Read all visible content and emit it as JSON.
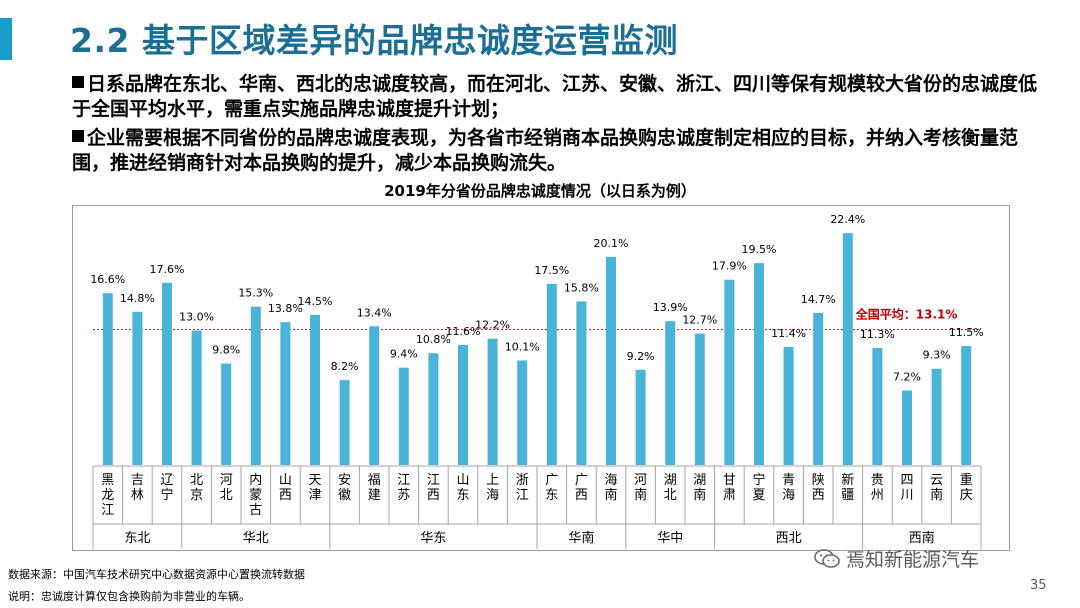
{
  "slide": {
    "title": "2.2 基于区域差异的品牌忠诚度运营监测",
    "bullet1": "日系品牌在东北、华南、西北的忠诚度较高，而在河北、江苏、安徽、浙江、四川等保有规模较大省份的忠诚度低于全国平均水平，需重点实施品牌忠诚度提升计划；",
    "bullet2": "企业需要根据不同省份的品牌忠诚度表现，为各省市经销商本品换购忠诚度制定相应的目标，并纳入考核衡量范围，推进经销商针对本品换购的提升，减少本品换购流失。",
    "source": "数据来源：中国汽车技术研究中心数据资源中心置换流转数据",
    "note": "说明：忠诚度计算仅包含换购前为非营业的车辆。",
    "watermark": "焉知新能源汽车",
    "watermark_icon": "wechat-icon",
    "page_number": "35"
  },
  "chart_data": {
    "type": "bar",
    "title": "2019年分省份品牌忠诚度情况（以日系为例）",
    "color": "#4ab3d8",
    "categories": [
      "黑龙江",
      "吉林",
      "辽宁",
      "北京",
      "河北",
      "内蒙古",
      "山西",
      "天津",
      "安徽",
      "福建",
      "江苏",
      "江西",
      "山东",
      "上海",
      "浙江",
      "广东",
      "广西",
      "海南",
      "河南",
      "湖北",
      "湖南",
      "甘肃",
      "宁夏",
      "青海",
      "陕西",
      "新疆",
      "贵州",
      "四川",
      "云南",
      "重庆"
    ],
    "values": [
      16.6,
      14.8,
      17.6,
      13.0,
      9.8,
      15.3,
      13.8,
      14.5,
      8.2,
      13.4,
      9.4,
      10.8,
      11.6,
      12.2,
      10.1,
      17.5,
      15.8,
      20.1,
      9.2,
      13.9,
      12.7,
      17.9,
      19.5,
      11.4,
      14.7,
      22.4,
      11.3,
      7.2,
      9.3,
      11.5
    ],
    "value_labels": [
      "16.6%",
      "14.8%",
      "17.6%",
      "13.0%",
      "9.8%",
      "15.3%",
      "13.8%",
      "14.5%",
      "8.2%",
      "13.4%",
      "9.4%",
      "10.8%",
      "11.6%",
      "12.2%",
      "10.1%",
      "17.5%",
      "15.8%",
      "20.1%",
      "9.2%",
      "13.9%",
      "12.7%",
      "17.9%",
      "19.5%",
      "11.4%",
      "14.7%",
      "22.4%",
      "11.3%",
      "7.2%",
      "9.3%",
      "11.5%"
    ],
    "average": {
      "value": 13.1,
      "label": "全国平均：13.1%",
      "color": "#c00000"
    },
    "regions": [
      {
        "name": "东北",
        "count": 3
      },
      {
        "name": "华北",
        "count": 5
      },
      {
        "name": "华东",
        "count": 7
      },
      {
        "name": "华南",
        "count": 3
      },
      {
        "name": "华中",
        "count": 3
      },
      {
        "name": "西北",
        "count": 5
      },
      {
        "name": "西南",
        "count": 4
      }
    ],
    "unit": "%",
    "grid": false,
    "legend": "none"
  }
}
